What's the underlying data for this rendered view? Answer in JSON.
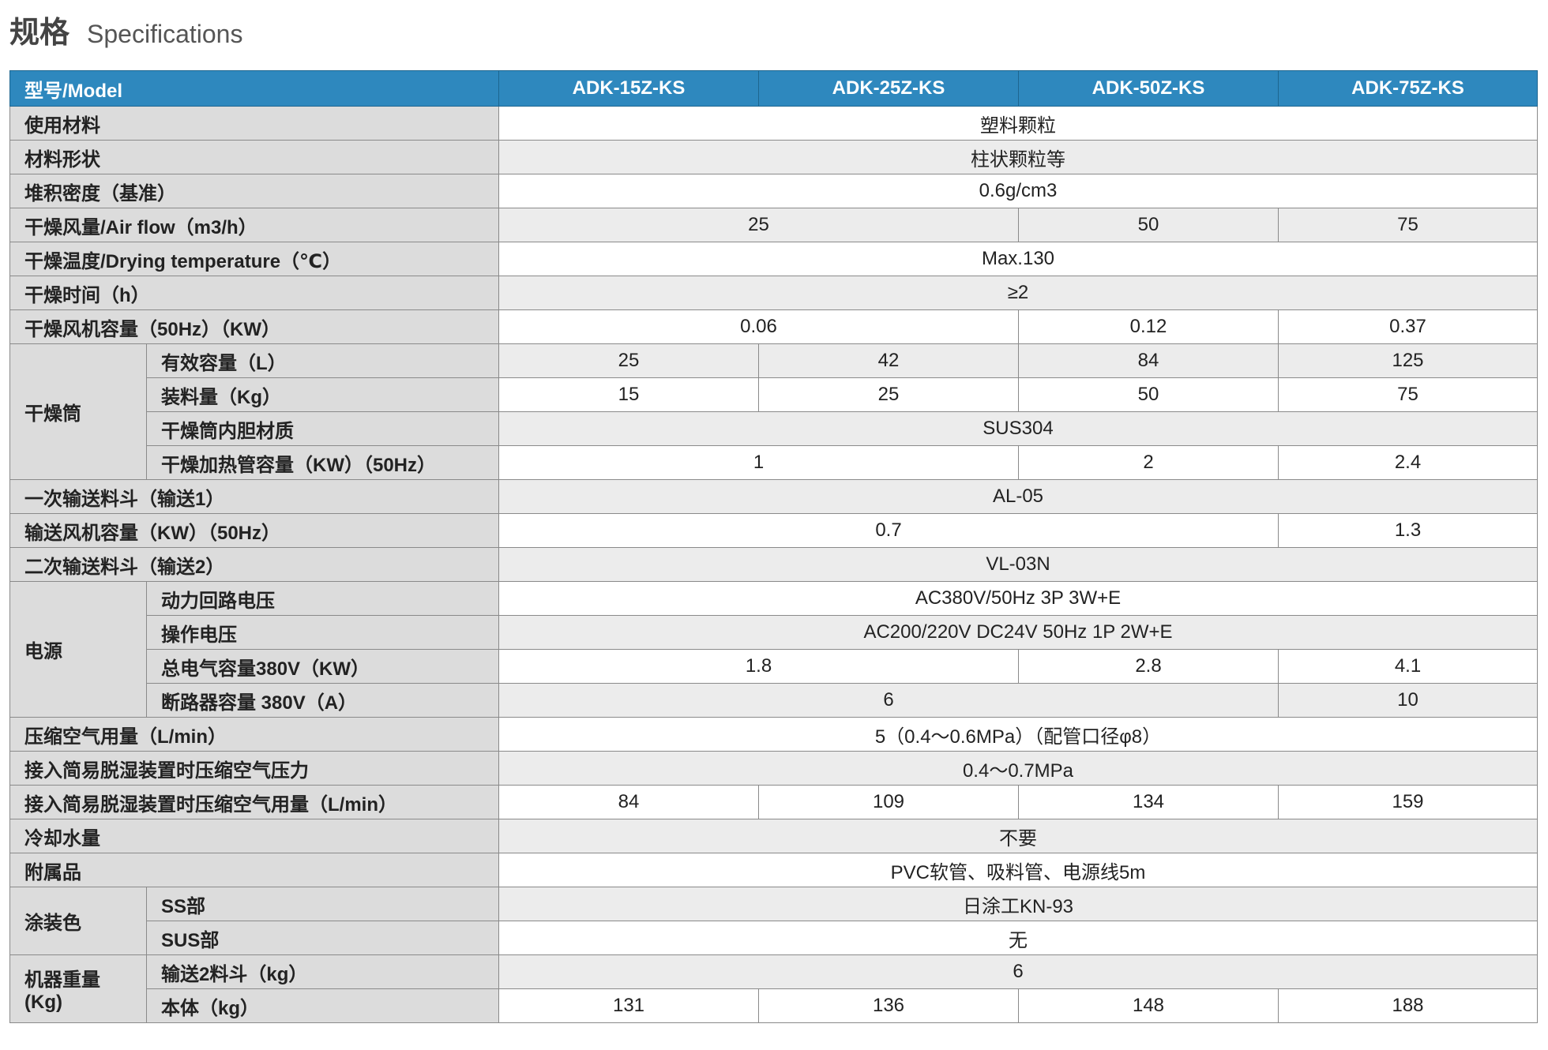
{
  "title": {
    "cn": "规格",
    "en": "Specifications"
  },
  "table": {
    "header": {
      "model": "型号/Model",
      "models": [
        "ADK-15Z-KS",
        "ADK-25Z-KS",
        "ADK-50Z-KS",
        "ADK-75Z-KS"
      ]
    },
    "rows": [
      {
        "label": "使用材料",
        "values": [
          "塑料颗粒"
        ]
      },
      {
        "label": "材料形状",
        "values": [
          "柱状颗粒等"
        ]
      },
      {
        "label": "堆积密度（基准）",
        "values": [
          "0.6g/cm3"
        ]
      },
      {
        "label": "干燥风量/Air flow（m3/h）",
        "values": [
          "25",
          "50",
          "75"
        ]
      },
      {
        "label": "干燥温度/Drying temperature（℃）",
        "values": [
          "Max.130"
        ]
      },
      {
        "label": "干燥时间（h）",
        "values": [
          "≥2"
        ]
      },
      {
        "label": "干燥风机容量（50Hz）（KW）",
        "values": [
          "0.06",
          "0.12",
          "0.37"
        ]
      },
      {
        "group": "干燥筒",
        "rows": [
          {
            "label": "有效容量（L）",
            "values": [
              "25",
              "42",
              "84",
              "125"
            ]
          },
          {
            "label": "装料量（Kg）",
            "values": [
              "15",
              "25",
              "50",
              "75"
            ]
          },
          {
            "label": "干燥筒内胆材质",
            "values": [
              "SUS304"
            ]
          },
          {
            "label": "干燥加热管容量（KW）（50Hz）",
            "values": [
              "1",
              "2",
              "2.4"
            ]
          }
        ]
      },
      {
        "label": "一次输送料斗（输送1）",
        "values": [
          "AL-05"
        ]
      },
      {
        "label": "输送风机容量（KW）（50Hz）",
        "values": [
          "0.7",
          "1.3"
        ]
      },
      {
        "label": "二次输送料斗（输送2）",
        "values": [
          "VL-03N"
        ]
      },
      {
        "group": "电源",
        "rows": [
          {
            "label": "动力回路电压",
            "values": [
              "AC380V/50Hz 3P 3W+E"
            ]
          },
          {
            "label": "操作电压",
            "values": [
              "AC200/220V DC24V 50Hz 1P 2W+E"
            ]
          },
          {
            "label": "总电气容量380V（KW）",
            "values": [
              "1.8",
              "2.8",
              "4.1"
            ]
          },
          {
            "label": "断路器容量 380V（A）",
            "values": [
              "6",
              "10"
            ]
          }
        ]
      },
      {
        "label": "压缩空气用量（L/min）",
        "values": [
          "5（0.4～0.6MPa）（配管口径φ8）"
        ]
      },
      {
        "label": "接入简易脱湿装置时压缩空气压力",
        "values": [
          "0.4～0.7MPa"
        ]
      },
      {
        "label": "接入简易脱湿装置时压缩空气用量（L/min）",
        "values": [
          "84",
          "109",
          "134",
          "159"
        ]
      },
      {
        "label": "冷却水量",
        "values": [
          "不要"
        ]
      },
      {
        "label": "附属品",
        "values": [
          "PVC软管、吸料管、电源线5m"
        ]
      },
      {
        "group": "涂装色",
        "rows": [
          {
            "label": "SS部",
            "values": [
              "日涂工KN-93"
            ]
          },
          {
            "label": "SUS部",
            "values": [
              "无"
            ]
          }
        ]
      },
      {
        "group": "机器重量\n(Kg)",
        "rows": [
          {
            "label": "输送2料斗（kg）",
            "values": [
              "6"
            ]
          },
          {
            "label": "本体（kg）",
            "values": [
              "131",
              "136",
              "148",
              "188"
            ]
          }
        ]
      }
    ]
  }
}
